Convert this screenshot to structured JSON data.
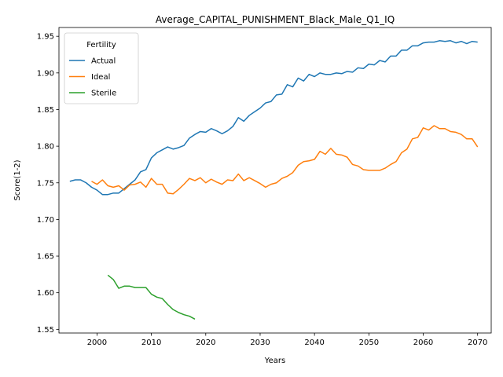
{
  "chart_data": {
    "type": "line",
    "title": "Average_CAPITAL_PUNISHMENT_Black_Male_Q1_IQ",
    "xlabel": "Years",
    "ylabel": "Score(1-2)",
    "xlim": [
      1993,
      2072.5
    ],
    "ylim": [
      1.545,
      1.962
    ],
    "xticks": [
      2000,
      2010,
      2020,
      2030,
      2040,
      2050,
      2060,
      2070
    ],
    "yticks": [
      1.55,
      1.6,
      1.65,
      1.7,
      1.75,
      1.8,
      1.85,
      1.9,
      1.95
    ],
    "ytick_labels": [
      "1.55",
      "1.60",
      "1.65",
      "1.70",
      "1.75",
      "1.80",
      "1.85",
      "1.90",
      "1.95"
    ],
    "grid": false,
    "legend": {
      "title": "Fertility",
      "placement": "top-left"
    },
    "series": [
      {
        "name": "Actual",
        "color": "#1f77b4",
        "x": [
          1995,
          1996,
          1997,
          1998,
          1999,
          2000,
          2001,
          2002,
          2003,
          2004,
          2005,
          2006,
          2007,
          2008,
          2009,
          2010,
          2011,
          2012,
          2013,
          2014,
          2015,
          2016,
          2017,
          2018,
          2019,
          2020,
          2021,
          2022,
          2023,
          2024,
          2025,
          2026,
          2027,
          2028,
          2029,
          2030,
          2031,
          2032,
          2033,
          2034,
          2035,
          2036,
          2037,
          2038,
          2039,
          2040,
          2041,
          2042,
          2043,
          2044,
          2045,
          2046,
          2047,
          2048,
          2049,
          2050,
          2051,
          2052,
          2053,
          2054,
          2055,
          2056,
          2057,
          2058,
          2059,
          2060,
          2061,
          2062,
          2063,
          2064,
          2065,
          2066,
          2067,
          2068,
          2069,
          2070
        ],
        "values": [
          1.752,
          1.754,
          1.754,
          1.75,
          1.744,
          1.74,
          1.734,
          1.734,
          1.736,
          1.736,
          1.742,
          1.748,
          1.754,
          1.765,
          1.768,
          1.784,
          1.791,
          1.795,
          1.799,
          1.796,
          1.798,
          1.801,
          1.811,
          1.816,
          1.82,
          1.819,
          1.824,
          1.821,
          1.817,
          1.821,
          1.827,
          1.839,
          1.834,
          1.842,
          1.847,
          1.852,
          1.859,
          1.861,
          1.87,
          1.871,
          1.884,
          1.881,
          1.893,
          1.889,
          1.898,
          1.895,
          1.9,
          1.898,
          1.898,
          1.9,
          1.899,
          1.902,
          1.901,
          1.907,
          1.906,
          1.912,
          1.911,
          1.917,
          1.915,
          1.923,
          1.923,
          1.931,
          1.931,
          1.937,
          1.937,
          1.941,
          1.942,
          1.942,
          1.944,
          1.943,
          1.944,
          1.941,
          1.943,
          1.94,
          1.943,
          1.942
        ]
      },
      {
        "name": "Ideal",
        "color": "#ff7f0e",
        "x": [
          1999,
          2000,
          2001,
          2002,
          2003,
          2004,
          2005,
          2006,
          2007,
          2008,
          2009,
          2010,
          2011,
          2012,
          2013,
          2014,
          2015,
          2016,
          2017,
          2018,
          2019,
          2020,
          2021,
          2022,
          2023,
          2024,
          2025,
          2026,
          2027,
          2028,
          2029,
          2030,
          2031,
          2032,
          2033,
          2034,
          2035,
          2036,
          2037,
          2038,
          2039,
          2040,
          2041,
          2042,
          2043,
          2044,
          2045,
          2046,
          2047,
          2048,
          2049,
          2050,
          2051,
          2052,
          2053,
          2054,
          2055,
          2056,
          2057,
          2058,
          2059,
          2060,
          2061,
          2062,
          2063,
          2064,
          2065,
          2066,
          2067,
          2068,
          2069,
          2070
        ],
        "values": [
          1.752,
          1.748,
          1.754,
          1.746,
          1.744,
          1.746,
          1.74,
          1.747,
          1.748,
          1.751,
          1.744,
          1.756,
          1.748,
          1.748,
          1.736,
          1.735,
          1.741,
          1.748,
          1.756,
          1.753,
          1.757,
          1.75,
          1.755,
          1.751,
          1.748,
          1.754,
          1.753,
          1.762,
          1.753,
          1.757,
          1.753,
          1.749,
          1.744,
          1.748,
          1.75,
          1.756,
          1.759,
          1.764,
          1.774,
          1.779,
          1.78,
          1.782,
          1.793,
          1.789,
          1.797,
          1.789,
          1.788,
          1.785,
          1.775,
          1.773,
          1.768,
          1.767,
          1.767,
          1.767,
          1.77,
          1.775,
          1.779,
          1.791,
          1.796,
          1.81,
          1.812,
          1.825,
          1.822,
          1.828,
          1.824,
          1.824,
          1.82,
          1.819,
          1.816,
          1.81,
          1.81,
          1.799
        ]
      },
      {
        "name": "Sterile",
        "color": "#2ca02c",
        "x": [
          2002,
          2003,
          2004,
          2005,
          2006,
          2007,
          2008,
          2009,
          2010,
          2011,
          2012,
          2013,
          2014,
          2015,
          2016,
          2017,
          2018
        ],
        "values": [
          1.624,
          1.618,
          1.606,
          1.609,
          1.609,
          1.607,
          1.607,
          1.607,
          1.598,
          1.594,
          1.592,
          1.584,
          1.577,
          1.573,
          1.57,
          1.568,
          1.564
        ]
      }
    ]
  }
}
